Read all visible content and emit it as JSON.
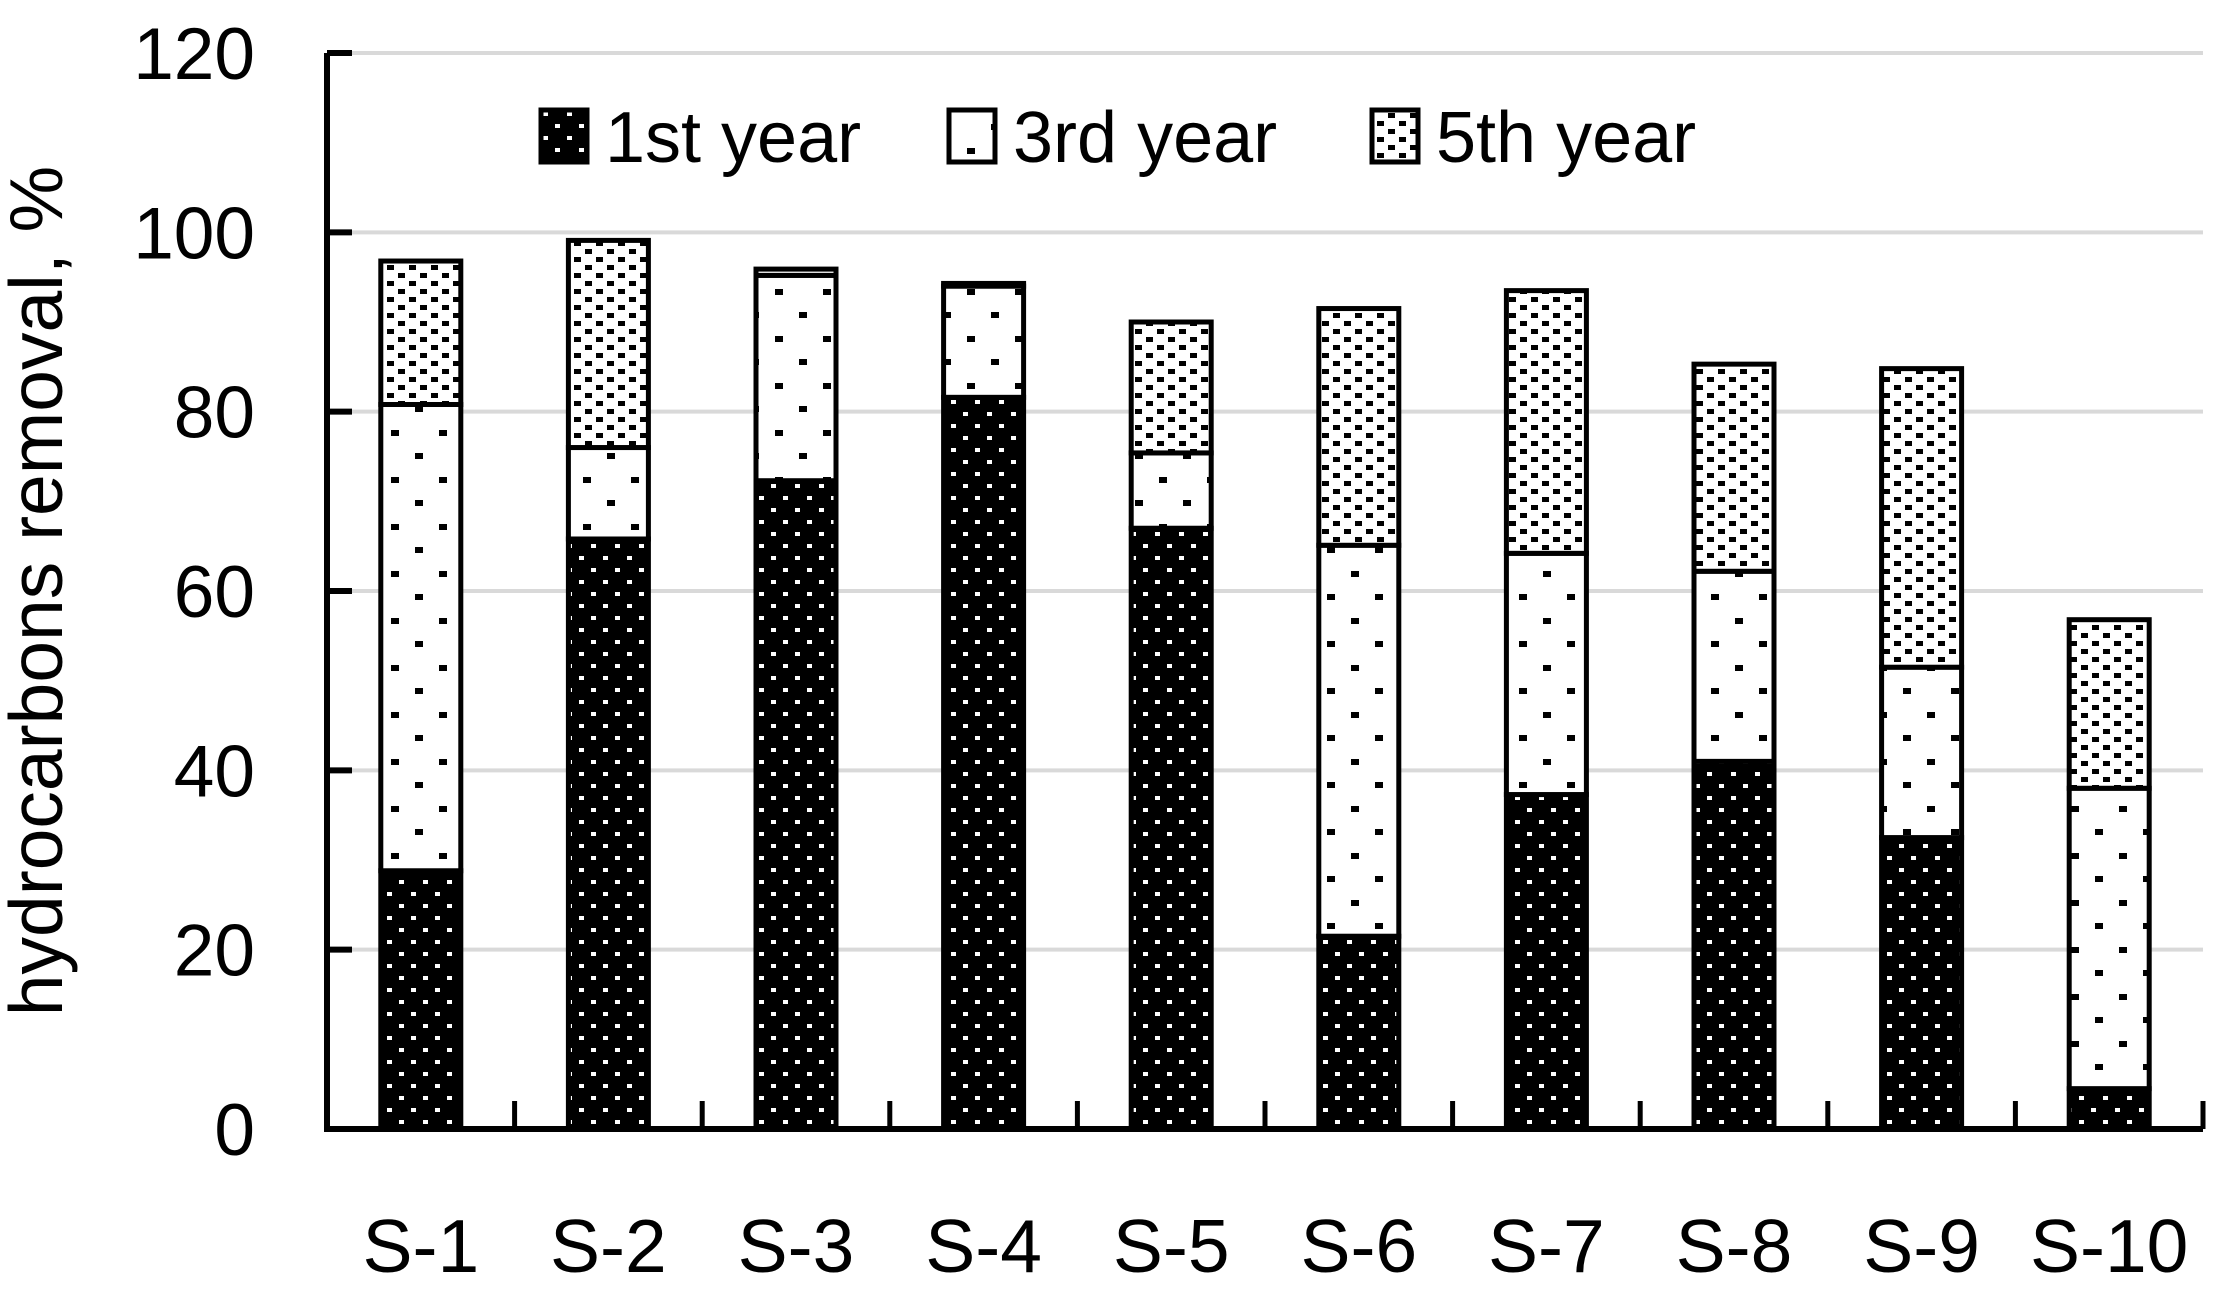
{
  "chart_data": {
    "type": "bar",
    "stacked": true,
    "title": "",
    "xlabel": "",
    "ylabel": "hydrocarbons removal, %",
    "ylim": [
      0,
      120
    ],
    "yticks": [
      0,
      20,
      40,
      60,
      80,
      100,
      120
    ],
    "categories": [
      "S-1",
      "S-2",
      "S-3",
      "S-4",
      "S-5",
      "S-6",
      "S-7",
      "S-8",
      "S-9",
      "S-10"
    ],
    "series": [
      {
        "name": "1st year",
        "pattern": "black-with-white-square-dots",
        "values": [
          28.8,
          65.8,
          72.3,
          81.6,
          67.0,
          21.5,
          37.3,
          41.0,
          32.5,
          4.5
        ]
      },
      {
        "name": "3rd year",
        "pattern": "white-with-sparse-black-square-dots",
        "values": [
          52.0,
          10.2,
          22.9,
          12.4,
          8.4,
          43.6,
          26.9,
          21.2,
          19.0,
          33.5
        ]
      },
      {
        "name": "5th year",
        "pattern": "white-with-dense-black-dot-grid",
        "values": [
          16.0,
          23.1,
          0.7,
          0.3,
          14.6,
          26.4,
          29.3,
          23.1,
          33.3,
          18.8
        ]
      }
    ],
    "stacked_totals": [
      96.8,
      99.1,
      95.9,
      94.3,
      90.0,
      91.5,
      93.5,
      85.3,
      84.8,
      56.8
    ],
    "legend_position": "top-center-inside",
    "grid": "horizontal",
    "gridline_color": "#d9d9d9",
    "foreground_color": "#000000",
    "background_color": "#ffffff"
  }
}
